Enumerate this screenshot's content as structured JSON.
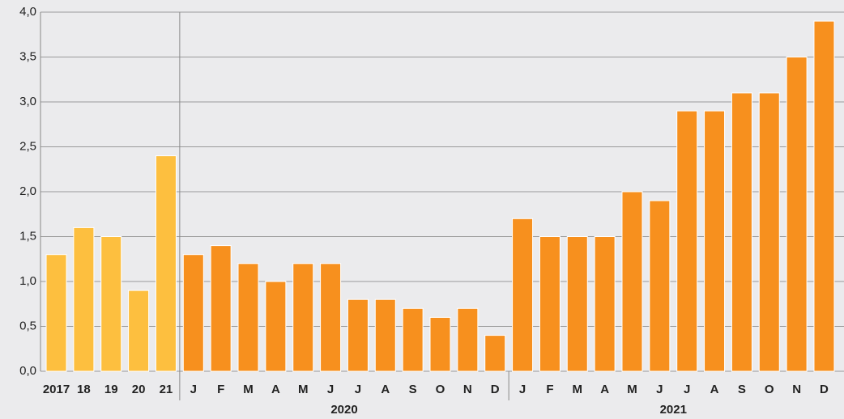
{
  "chart_data": {
    "type": "bar",
    "categories": [
      "2017",
      "18",
      "19",
      "20",
      "21",
      "J",
      "F",
      "M",
      "A",
      "M",
      "J",
      "J",
      "A",
      "S",
      "O",
      "N",
      "D",
      "J",
      "F",
      "M",
      "A",
      "M",
      "J",
      "J",
      "A",
      "S",
      "O",
      "N",
      "D"
    ],
    "values": [
      1.3,
      1.6,
      1.5,
      0.9,
      2.4,
      1.3,
      1.4,
      1.2,
      1.0,
      1.2,
      1.2,
      0.8,
      0.8,
      0.7,
      0.6,
      0.7,
      0.4,
      1.7,
      1.5,
      1.5,
      1.5,
      2.0,
      1.9,
      2.9,
      2.9,
      3.1,
      3.1,
      3.5,
      3.9
    ],
    "colors": [
      "#fdbf3f",
      "#fdbf3f",
      "#fdbf3f",
      "#fdbf3f",
      "#fdbf3f",
      "#f7901e",
      "#f7901e",
      "#f7901e",
      "#f7901e",
      "#f7901e",
      "#f7901e",
      "#f7901e",
      "#f7901e",
      "#f7901e",
      "#f7901e",
      "#f7901e",
      "#f7901e",
      "#f7901e",
      "#f7901e",
      "#f7901e",
      "#f7901e",
      "#f7901e",
      "#f7901e",
      "#f7901e",
      "#f7901e",
      "#f7901e",
      "#f7901e",
      "#f7901e",
      "#f7901e"
    ],
    "group_labels": [
      "2020",
      "2021"
    ],
    "ylim": [
      0,
      4
    ],
    "yticks": [
      {
        "value": 0,
        "label": "0,0"
      },
      {
        "value": 0.5,
        "label": "0,5"
      },
      {
        "value": 1,
        "label": "1,0"
      },
      {
        "value": 1.5,
        "label": "1,5"
      },
      {
        "value": 2,
        "label": "2,0"
      },
      {
        "value": 2.5,
        "label": "2,5"
      },
      {
        "value": 3,
        "label": "3,0"
      },
      {
        "value": 3.5,
        "label": "3,5"
      },
      {
        "value": 4,
        "label": "4,0"
      }
    ],
    "grid": true
  }
}
